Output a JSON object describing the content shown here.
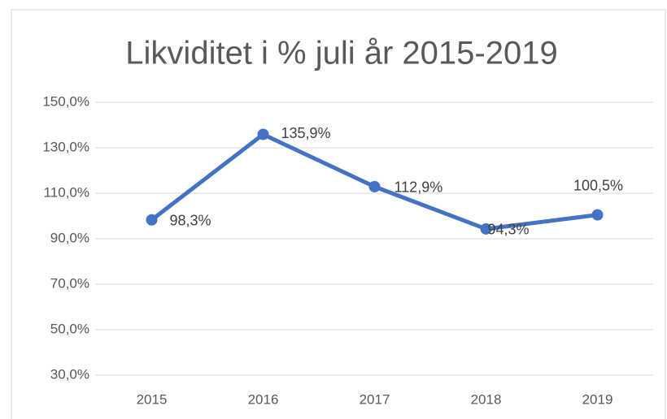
{
  "chart_data": {
    "type": "line",
    "title": "Likviditet i % juli år 2015-2019",
    "categories": [
      "2015",
      "2016",
      "2017",
      "2018",
      "2019"
    ],
    "series": [
      {
        "name": "Likviditet",
        "color": "#4472c4",
        "values": [
          98.3,
          135.9,
          112.9,
          94.3,
          100.5
        ],
        "value_labels": [
          "98,3%",
          "135,9%",
          "112,9%",
          "94,3%",
          "100,5%"
        ]
      }
    ],
    "ylim": [
      30,
      150
    ],
    "yticks": [
      {
        "value": 30,
        "label": "30,0%"
      },
      {
        "value": 50,
        "label": "50,0%"
      },
      {
        "value": 70,
        "label": "70,0%"
      },
      {
        "value": 90,
        "label": "90,0%"
      },
      {
        "value": 110,
        "label": "110,0%"
      },
      {
        "value": 130,
        "label": "130,0%"
      },
      {
        "value": 150,
        "label": "150,0%"
      }
    ],
    "grid": true
  }
}
